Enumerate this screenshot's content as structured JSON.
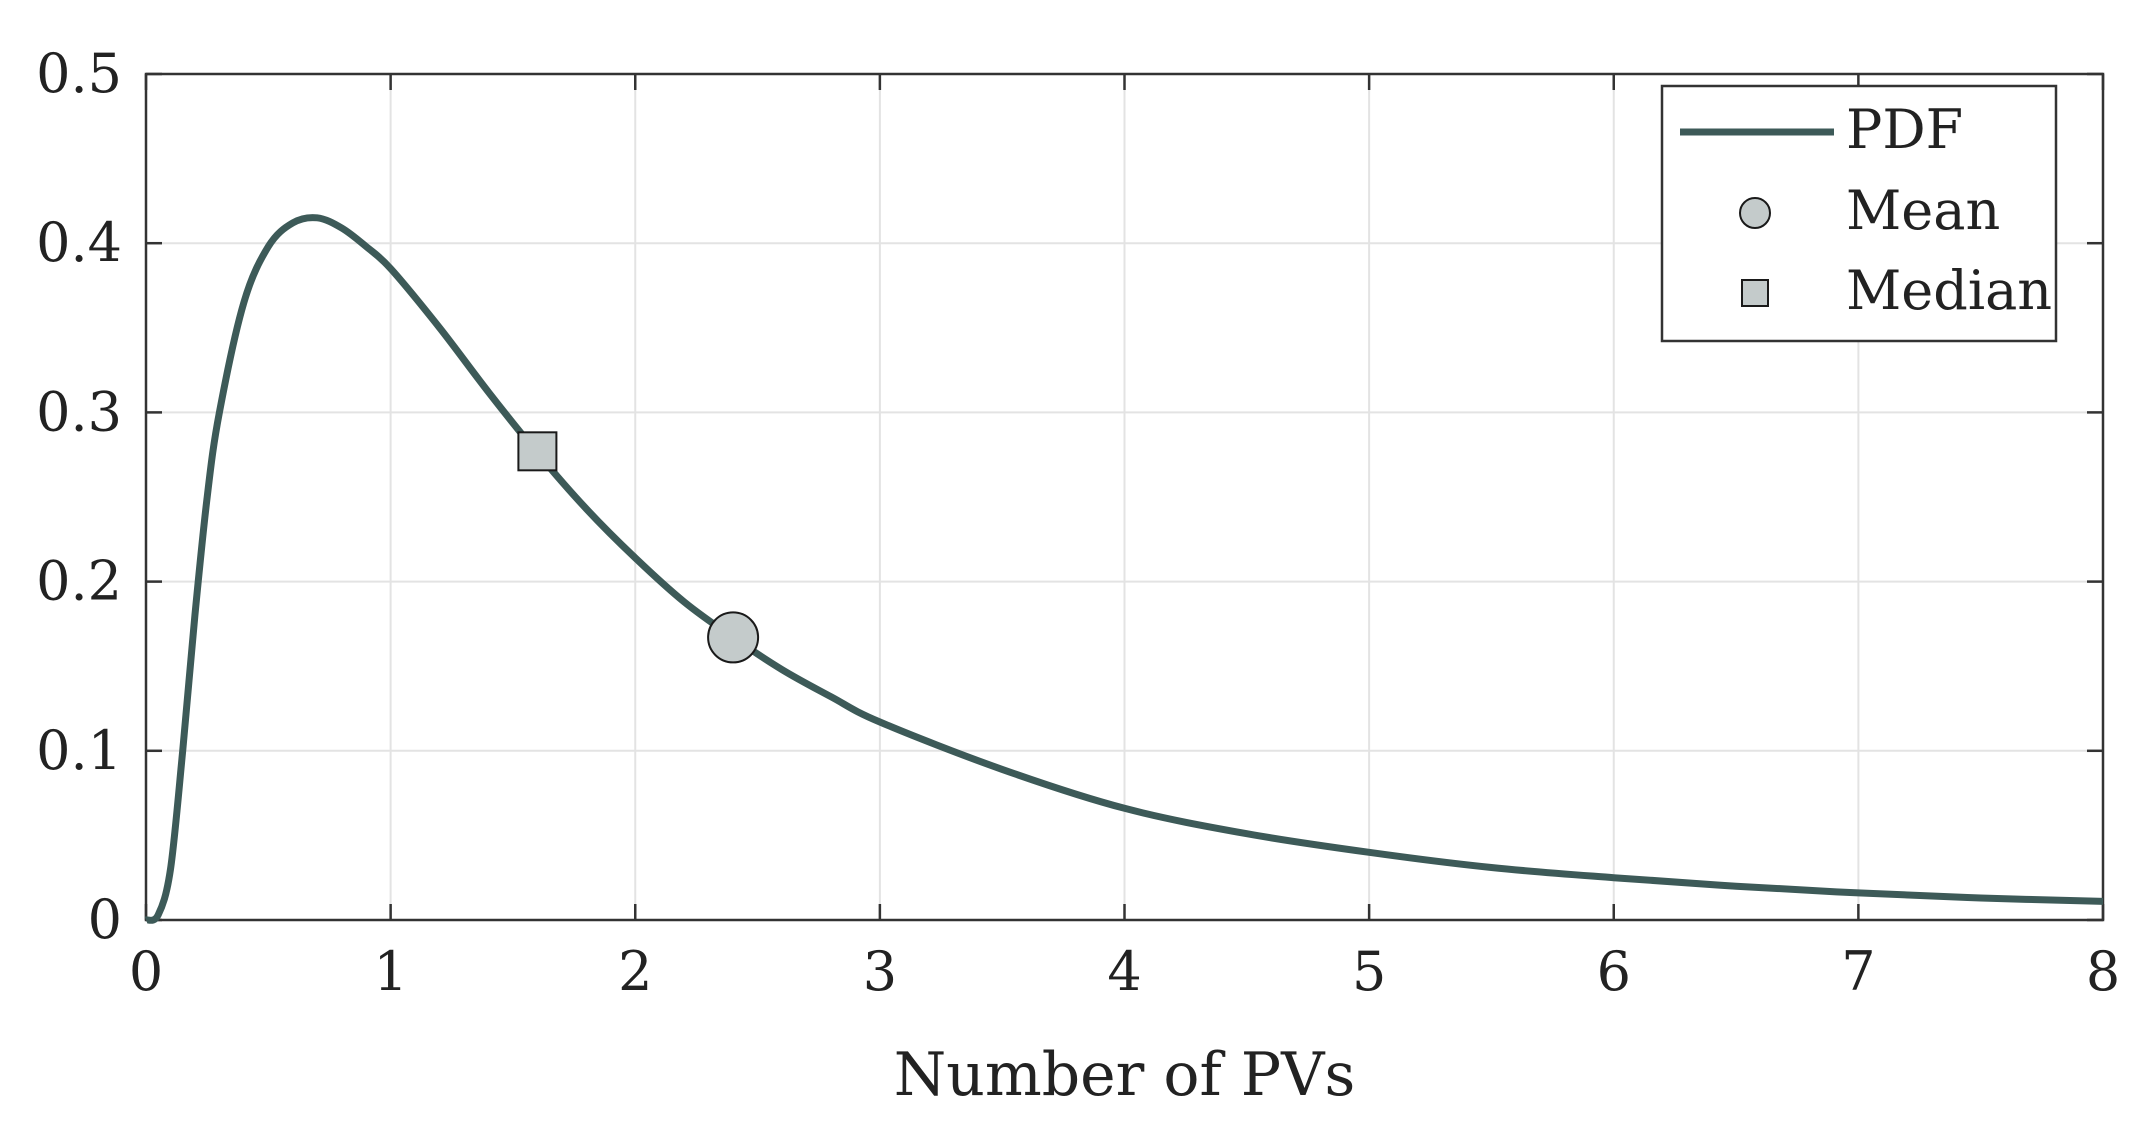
{
  "chart_data": {
    "type": "line",
    "title": "",
    "xlabel": "Number of PVs",
    "ylabel": "",
    "xlim": [
      0,
      8
    ],
    "ylim": [
      0,
      0.5
    ],
    "x_ticks": [
      0,
      1,
      2,
      3,
      4,
      5,
      6,
      7,
      8
    ],
    "x_tick_labels": [
      "0",
      "1",
      "2",
      "3",
      "4",
      "5",
      "6",
      "7",
      "8"
    ],
    "y_ticks": [
      0,
      0.1,
      0.2,
      0.3,
      0.4,
      0.5
    ],
    "y_tick_labels": [
      "0",
      "0.1",
      "0.2",
      "0.3",
      "0.4",
      "0.5"
    ],
    "grid": true,
    "legend_position": "top-right",
    "colors": {
      "line": "#3d5a58",
      "marker_fill": "#c4cbcb",
      "marker_stroke": "#1a1a1a"
    },
    "series": [
      {
        "name": "PDF",
        "kind": "line",
        "x": [
          0,
          0.05,
          0.1,
          0.15,
          0.2,
          0.25,
          0.3,
          0.4,
          0.5,
          0.6,
          0.7,
          0.8,
          0.9,
          1.0,
          1.2,
          1.4,
          1.6,
          1.8,
          2.0,
          2.2,
          2.4,
          2.6,
          2.8,
          3.0,
          3.5,
          4.0,
          4.5,
          5.0,
          5.5,
          6.0,
          6.5,
          7.0,
          7.5,
          8.0
        ],
        "y": [
          0,
          0.003,
          0.03,
          0.1,
          0.18,
          0.25,
          0.3,
          0.365,
          0.398,
          0.412,
          0.415,
          0.409,
          0.398,
          0.385,
          0.35,
          0.312,
          0.276,
          0.243,
          0.214,
          0.188,
          0.167,
          0.148,
          0.132,
          0.117,
          0.089,
          0.066,
          0.051,
          0.04,
          0.031,
          0.025,
          0.02,
          0.016,
          0.013,
          0.011
        ]
      },
      {
        "name": "Mean",
        "kind": "marker",
        "marker": "circle",
        "x": 2.4,
        "y": 0.167
      },
      {
        "name": "Median",
        "kind": "marker",
        "marker": "square",
        "x": 1.6,
        "y": 0.277
      }
    ],
    "legend": [
      {
        "label": "PDF",
        "symbol": "line"
      },
      {
        "label": "Mean",
        "symbol": "circle"
      },
      {
        "label": "Median",
        "symbol": "square"
      }
    ]
  }
}
